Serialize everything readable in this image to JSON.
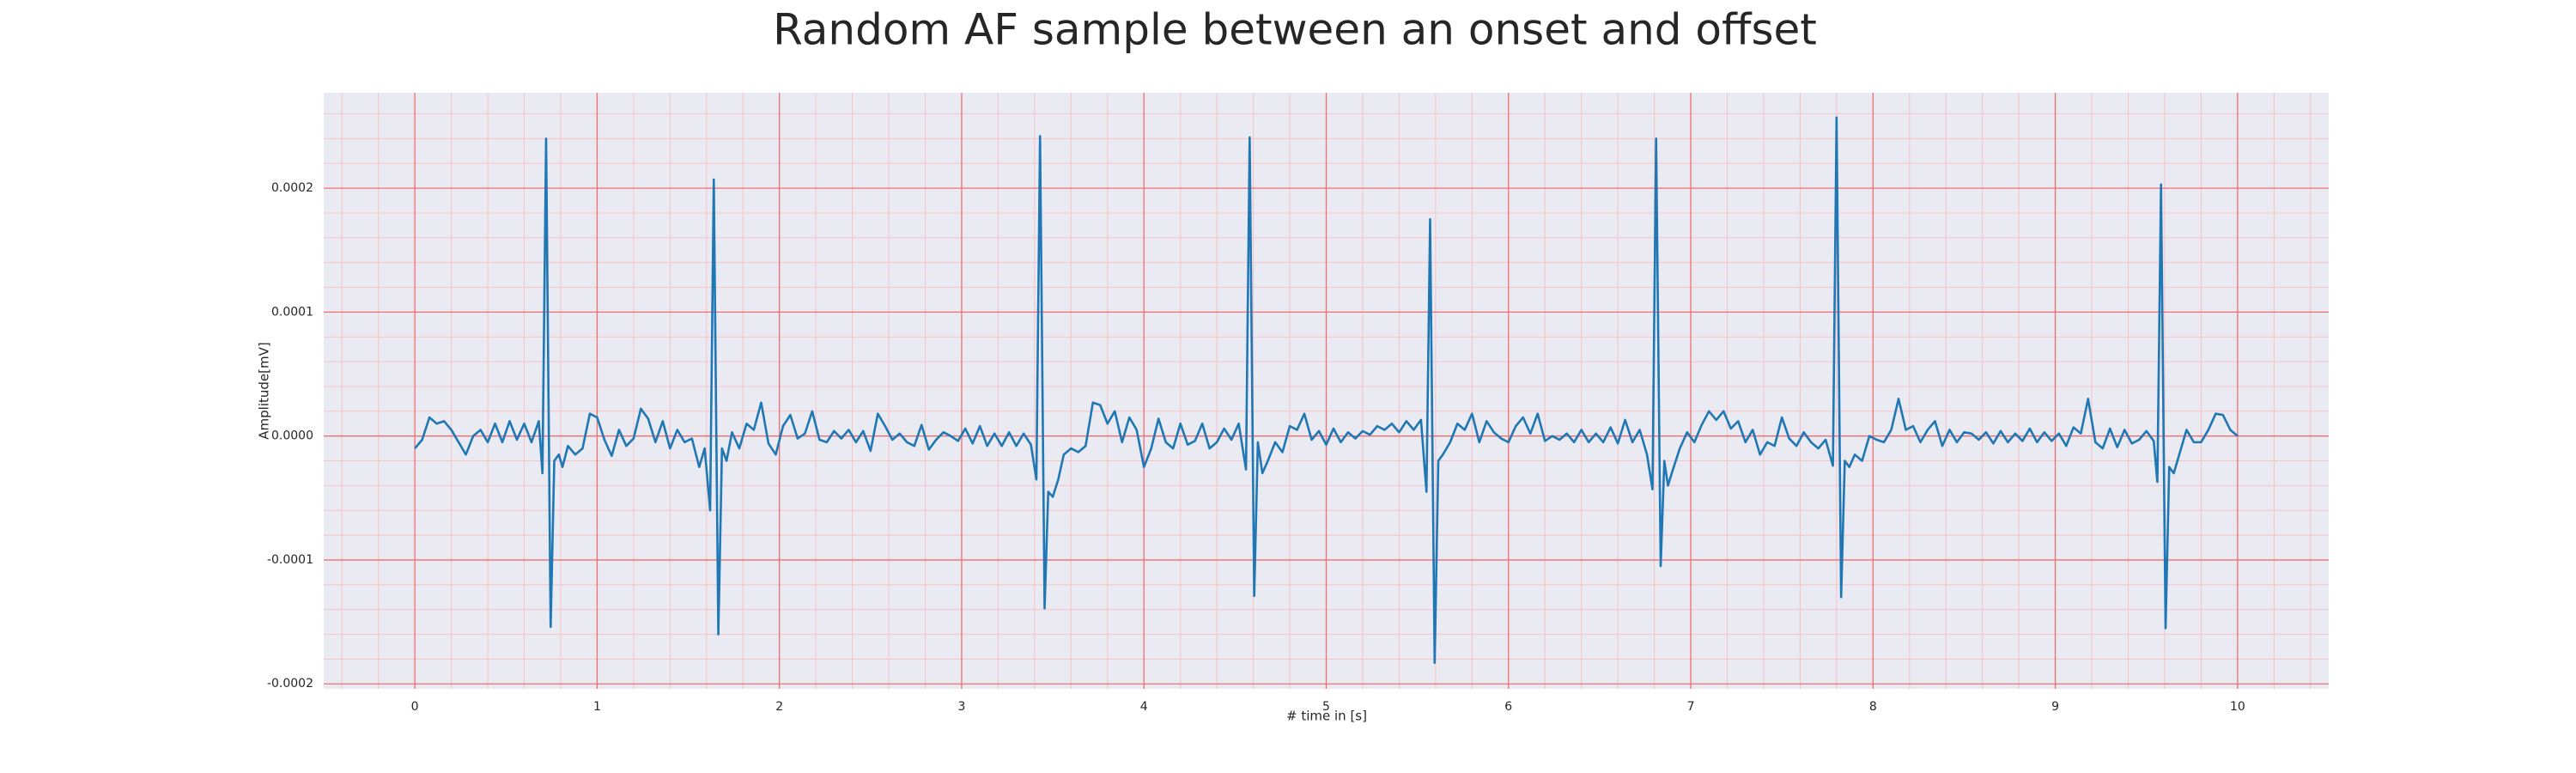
{
  "chart_data": {
    "type": "line",
    "title": "Random AF sample between an onset and offset",
    "xlabel": "# time in [s]",
    "ylabel": "Amplitude[mV]",
    "color": "#1f77b4",
    "grid": true,
    "xlim": [
      -0.5,
      10.5
    ],
    "ylim": [
      -0.000204,
      0.000277
    ],
    "xticks": [
      0,
      1,
      2,
      3,
      4,
      5,
      6,
      7,
      8,
      9,
      10
    ],
    "yticks": [
      0.0002,
      0.0001,
      {
        "value": 0,
        "label": "0.0000"
      },
      -0.0001,
      -0.0002
    ],
    "x": [
      0,
      0.04,
      0.08,
      0.12,
      0.16,
      0.2,
      0.24,
      0.28,
      0.32,
      0.36,
      0.4,
      0.44,
      0.48,
      0.52,
      0.56,
      0.6,
      0.64,
      0.68,
      0.7,
      0.72,
      0.745,
      0.765,
      0.79,
      0.81,
      0.84,
      0.88,
      0.92,
      0.96,
      1.0,
      1.04,
      1.08,
      1.12,
      1.16,
      1.2,
      1.24,
      1.28,
      1.32,
      1.36,
      1.4,
      1.44,
      1.48,
      1.52,
      1.56,
      1.59,
      1.62,
      1.64,
      1.665,
      1.685,
      1.71,
      1.74,
      1.78,
      1.82,
      1.86,
      1.9,
      1.94,
      1.98,
      2.02,
      2.06,
      2.1,
      2.14,
      2.18,
      2.22,
      2.26,
      2.3,
      2.34,
      2.38,
      2.42,
      2.46,
      2.5,
      2.54,
      2.58,
      2.62,
      2.66,
      2.7,
      2.74,
      2.78,
      2.82,
      2.86,
      2.9,
      2.94,
      2.98,
      3.02,
      3.06,
      3.1,
      3.14,
      3.18,
      3.22,
      3.26,
      3.3,
      3.34,
      3.38,
      3.41,
      3.43,
      3.455,
      3.475,
      3.5,
      3.53,
      3.56,
      3.6,
      3.64,
      3.68,
      3.72,
      3.76,
      3.8,
      3.84,
      3.88,
      3.92,
      3.96,
      4.0,
      4.04,
      4.08,
      4.12,
      4.16,
      4.2,
      4.24,
      4.28,
      4.32,
      4.36,
      4.4,
      4.44,
      4.48,
      4.52,
      4.56,
      4.58,
      4.605,
      4.625,
      4.65,
      4.68,
      4.72,
      4.76,
      4.8,
      4.84,
      4.88,
      4.92,
      4.96,
      5.0,
      5.04,
      5.08,
      5.12,
      5.16,
      5.2,
      5.24,
      5.28,
      5.32,
      5.36,
      5.4,
      5.44,
      5.48,
      5.52,
      5.55,
      5.57,
      5.595,
      5.615,
      5.64,
      5.68,
      5.72,
      5.76,
      5.8,
      5.84,
      5.88,
      5.92,
      5.96,
      6.0,
      6.04,
      6.08,
      6.12,
      6.16,
      6.2,
      6.24,
      6.28,
      6.32,
      6.36,
      6.4,
      6.44,
      6.48,
      6.52,
      6.56,
      6.6,
      6.64,
      6.68,
      6.72,
      6.76,
      6.79,
      6.81,
      6.835,
      6.855,
      6.875,
      6.9,
      6.94,
      6.98,
      7.02,
      7.06,
      7.1,
      7.14,
      7.18,
      7.22,
      7.26,
      7.3,
      7.34,
      7.38,
      7.42,
      7.46,
      7.5,
      7.54,
      7.58,
      7.62,
      7.66,
      7.7,
      7.74,
      7.78,
      7.8,
      7.825,
      7.845,
      7.87,
      7.9,
      7.94,
      7.98,
      8.02,
      8.06,
      8.1,
      8.14,
      8.18,
      8.22,
      8.26,
      8.3,
      8.34,
      8.38,
      8.42,
      8.46,
      8.5,
      8.54,
      8.58,
      8.62,
      8.66,
      8.7,
      8.74,
      8.78,
      8.82,
      8.86,
      8.9,
      8.94,
      8.98,
      9.02,
      9.06,
      9.1,
      9.14,
      9.18,
      9.22,
      9.26,
      9.3,
      9.34,
      9.38,
      9.42,
      9.46,
      9.5,
      9.54,
      9.56,
      9.58,
      9.605,
      9.625,
      9.65,
      9.68,
      9.72,
      9.76,
      9.8,
      9.84,
      9.88,
      9.92,
      9.96,
      10.0
    ],
    "values": [
      -1e-05,
      -3e-06,
      1.5e-05,
      1e-05,
      1.2e-05,
      5e-06,
      -5e-06,
      -1.5e-05,
      0,
      5e-06,
      -5e-06,
      1e-05,
      -5e-06,
      1.2e-05,
      -3e-06,
      1e-05,
      -5e-06,
      1.2e-05,
      -3e-05,
      0.00024,
      -0.000154,
      -2e-05,
      -1.5e-05,
      -2.5e-05,
      -8e-06,
      -1.5e-05,
      -1e-05,
      1.8e-05,
      1.5e-05,
      -3e-06,
      -1.6e-05,
      5e-06,
      -8e-06,
      -2e-06,
      2.2e-05,
      1.4e-05,
      -5e-06,
      1.2e-05,
      -1e-05,
      5e-06,
      -5e-06,
      -2e-06,
      -2.5e-05,
      -1e-05,
      -6e-05,
      0.000207,
      -0.00016,
      -1e-05,
      -2e-05,
      3e-06,
      -1e-05,
      1e-05,
      5e-06,
      2.7e-05,
      -6e-06,
      -1.5e-05,
      8e-06,
      1.7e-05,
      -2e-06,
      2e-06,
      2e-05,
      -3e-06,
      -5e-06,
      4e-06,
      -2e-06,
      5e-06,
      -5e-06,
      4e-06,
      -1.2e-05,
      1.8e-05,
      8e-06,
      -3e-06,
      2e-06,
      -5e-06,
      -8e-06,
      9e-06,
      -1.1e-05,
      -3e-06,
      3e-06,
      0,
      -4e-06,
      6e-06,
      -6e-06,
      8e-06,
      -8e-06,
      2e-06,
      -8e-06,
      3e-06,
      -8e-06,
      2e-06,
      -7e-06,
      -3.5e-05,
      0.000242,
      -0.000139,
      -4.5e-05,
      -4.9e-05,
      -3.5e-05,
      -1.5e-05,
      -1e-05,
      -1.3e-05,
      -8e-06,
      2.7e-05,
      2.5e-05,
      1e-05,
      2e-05,
      -5e-06,
      1.5e-05,
      5e-06,
      -2.5e-05,
      -1e-05,
      1.4e-05,
      -5e-06,
      -1e-05,
      1e-05,
      -7e-06,
      -4e-06,
      1e-05,
      -1e-05,
      -5e-06,
      6e-06,
      -3e-06,
      1e-05,
      -2.7e-05,
      0.000241,
      -0.000129,
      -5e-06,
      -3e-05,
      -2e-05,
      -5e-06,
      -1.3e-05,
      8e-06,
      5e-06,
      1.8e-05,
      -3e-06,
      4e-06,
      -7e-06,
      6e-06,
      -5e-06,
      3e-06,
      -2e-06,
      4e-06,
      1e-06,
      8e-06,
      5e-06,
      1e-05,
      3e-06,
      1.2e-05,
      5e-06,
      1.3e-05,
      -4.5e-05,
      0.000175,
      -0.000183,
      -2e-05,
      -1.5e-05,
      -5e-06,
      1e-05,
      5e-06,
      1.8e-05,
      -5e-06,
      1.2e-05,
      3e-06,
      -2e-06,
      -5e-06,
      8e-06,
      1.5e-05,
      2e-06,
      1.8e-05,
      -4e-06,
      0,
      -3e-06,
      2e-06,
      -5e-06,
      5e-06,
      -5e-06,
      2e-06,
      -5e-06,
      7e-06,
      -6e-06,
      1.3e-05,
      -5e-06,
      5e-06,
      -1.5e-05,
      -4.3e-05,
      0.00024,
      -0.000105,
      -2e-05,
      -4e-05,
      -2.8e-05,
      -1e-05,
      3e-06,
      -5e-06,
      9e-06,
      2e-05,
      1.3e-05,
      2e-05,
      6e-06,
      1.2e-05,
      -5e-06,
      5e-06,
      -1.5e-05,
      -5e-06,
      -8e-06,
      1.5e-05,
      -2e-06,
      -8e-06,
      3e-06,
      -5e-06,
      -1e-05,
      -3e-06,
      -2.4e-05,
      0.000257,
      -0.00013,
      -2e-05,
      -2.5e-05,
      -1.5e-05,
      -2e-05,
      0,
      -3e-06,
      -5e-06,
      5e-06,
      3e-05,
      5e-06,
      8e-06,
      -5e-06,
      5e-06,
      1.2e-05,
      -8e-06,
      5e-06,
      -5e-06,
      3e-06,
      2e-06,
      -3e-06,
      3e-06,
      -6e-06,
      4e-06,
      -5e-06,
      2e-06,
      -4e-06,
      6e-06,
      -5e-06,
      3e-06,
      -4e-06,
      2e-06,
      -8e-06,
      7e-06,
      2e-06,
      3e-05,
      -5e-06,
      -1e-05,
      6e-06,
      -9e-06,
      5e-06,
      -6e-06,
      -3e-06,
      4e-06,
      -4e-06,
      -3.7e-05,
      0.000203,
      -0.000155,
      -2.5e-05,
      -3e-05,
      -1.5e-05,
      5e-06,
      -5e-06,
      -5e-06,
      5e-06,
      1.8e-05,
      1.7e-05,
      5e-06,
      0
    ]
  }
}
